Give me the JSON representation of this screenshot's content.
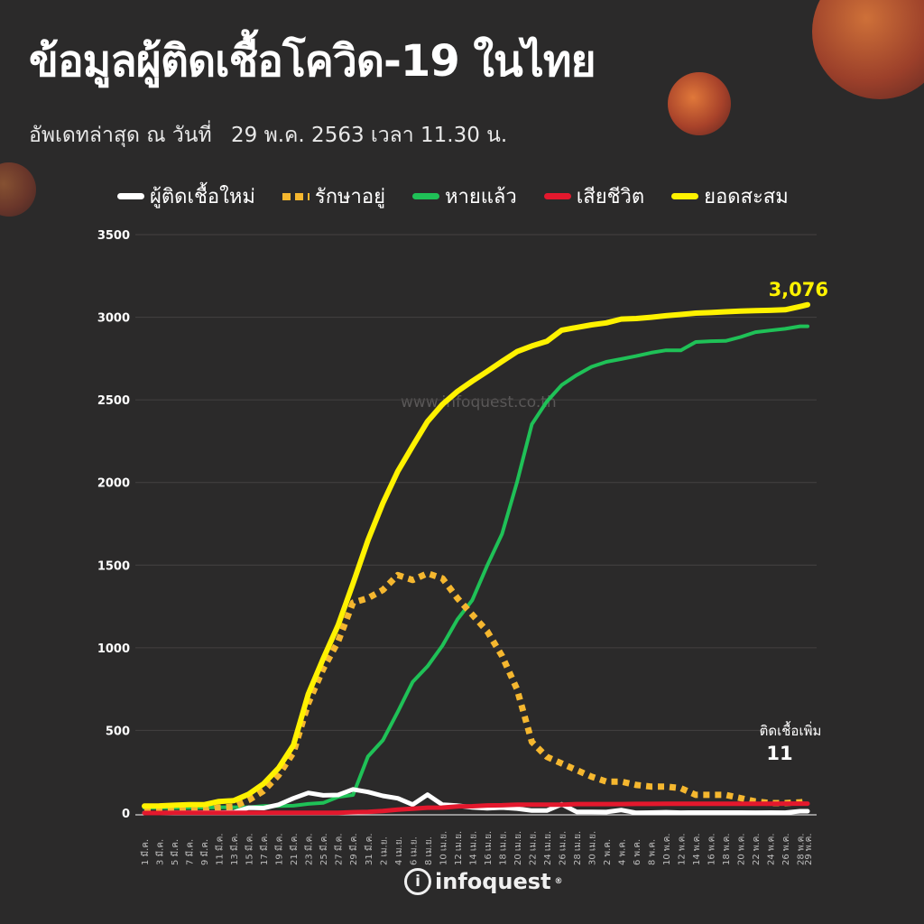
{
  "header": {
    "title": "ข้อมูลผู้ติดเชื้อโควิด-19 ในไทย",
    "updated_label": "อัพเดทล่าสุด ณ วันที่",
    "updated_value": "29 พ.ค. 2563 เวลา 11.30 น."
  },
  "watermark": "www.infoquest.co.th",
  "logo": {
    "text": "infoquest",
    "registered": "®"
  },
  "colors": {
    "background": "#2b2a2a",
    "new": "#ffffff",
    "active": "#f5b72f",
    "recovered": "#1fc157",
    "deaths": "#e3182d",
    "cumulative": "#fff200"
  },
  "chart_data": {
    "type": "line",
    "title": "ข้อมูลผู้ติดเชื้อโควิด-19 ในไทย",
    "xlabel": "",
    "ylabel": "",
    "ylim": [
      0,
      3500
    ],
    "yticks": [
      "0",
      "500",
      "1000",
      "1500",
      "2000",
      "2500",
      "3000",
      "3500"
    ],
    "grid": true,
    "legend_position": "top",
    "x": [
      "1 มี.ค.",
      "3 มี.ค.",
      "5 มี.ค.",
      "7 มี.ค.",
      "9 มี.ค.",
      "11 มี.ค.",
      "13 มี.ค.",
      "15 มี.ค.",
      "17 มี.ค.",
      "19 มี.ค.",
      "21 มี.ค.",
      "23 มี.ค.",
      "25 มี.ค.",
      "27 มี.ค.",
      "29 มี.ค.",
      "31 มี.ค.",
      "2 เม.ย.",
      "4 เม.ย.",
      "6 เม.ย.",
      "8 เม.ย.",
      "10 เม.ย.",
      "12 เม.ย.",
      "14 เม.ย.",
      "16 เม.ย.",
      "18 เม.ย.",
      "20 เม.ย.",
      "22 เม.ย.",
      "24 เม.ย.",
      "26 เม.ย.",
      "28 เม.ย.",
      "30 เม.ย.",
      "2 พ.ค.",
      "4 พ.ค.",
      "6 พ.ค.",
      "8 พ.ค.",
      "10 พ.ค.",
      "12 พ.ค.",
      "14 พ.ค.",
      "16 พ.ค.",
      "18 พ.ค.",
      "20 พ.ค.",
      "22 พ.ค.",
      "24 พ.ค.",
      "26 พ.ค.",
      "28 พ.ค.",
      "29 พ.ค."
    ],
    "x_day": [
      0,
      2,
      4,
      6,
      8,
      10,
      12,
      14,
      16,
      18,
      20,
      22,
      24,
      26,
      28,
      30,
      32,
      34,
      36,
      38,
      40,
      42,
      44,
      46,
      48,
      50,
      52,
      54,
      56,
      58,
      60,
      62,
      64,
      66,
      68,
      70,
      72,
      74,
      76,
      78,
      80,
      82,
      84,
      86,
      88,
      89
    ],
    "series": [
      {
        "key": "new",
        "name": "ผู้ติดเชื้อใหม่",
        "style": "solid",
        "values": [
          0,
          0,
          1,
          1,
          2,
          2,
          5,
          32,
          30,
          50,
          89,
          122,
          107,
          109,
          143,
          127,
          104,
          89,
          51,
          111,
          50,
          45,
          34,
          29,
          33,
          27,
          15,
          15,
          53,
          7,
          7,
          6,
          18,
          1,
          3,
          5,
          2,
          3,
          3,
          3,
          3,
          2,
          3,
          2,
          11,
          11
        ]
      },
      {
        "key": "active",
        "name": "รักษาอยู่",
        "style": "dashed",
        "values": [
          11,
          10,
          13,
          15,
          16,
          33,
          38,
          78,
          134,
          229,
          366,
          665,
          872,
          1038,
          1273,
          1300,
          1350,
          1440,
          1410,
          1450,
          1420,
          1300,
          1200,
          1100,
          950,
          750,
          430,
          340,
          300,
          260,
          220,
          190,
          190,
          170,
          160,
          160,
          150,
          110,
          110,
          110,
          90,
          70,
          60,
          60,
          65,
          70
        ]
      },
      {
        "key": "recovered",
        "name": "หายแล้ว",
        "style": "solid",
        "values": [
          31,
          31,
          31,
          31,
          33,
          35,
          35,
          35,
          42,
          42,
          44,
          55,
          61,
          97,
          109,
          342,
          440,
          612,
          793,
          888,
          1013,
          1171,
          1288,
          1497,
          1689,
          2000,
          2352,
          2490,
          2590,
          2650,
          2700,
          2730,
          2747,
          2765,
          2785,
          2800,
          2800,
          2850,
          2855,
          2857,
          2880,
          2910,
          2920,
          2930,
          2945,
          2945
        ]
      },
      {
        "key": "deaths",
        "name": "เสียชีวิต",
        "style": "solid",
        "values": [
          0,
          0,
          1,
          1,
          1,
          1,
          1,
          1,
          1,
          1,
          1,
          1,
          1,
          1,
          5,
          7,
          12,
          20,
          26,
          32,
          33,
          40,
          41,
          46,
          47,
          50,
          50,
          50,
          51,
          54,
          54,
          54,
          54,
          55,
          55,
          56,
          56,
          56,
          56,
          56,
          56,
          56,
          56,
          57,
          57,
          57
        ]
      },
      {
        "key": "cumulative",
        "name": "ยอดสะสม",
        "style": "solid",
        "values": [
          42,
          43,
          47,
          50,
          50,
          70,
          75,
          114,
          177,
          272,
          411,
          721,
          934,
          1136,
          1388,
          1651,
          1875,
          2067,
          2220,
          2369,
          2473,
          2551,
          2613,
          2672,
          2733,
          2792,
          2826,
          2854,
          2922,
          2938,
          2954,
          2966,
          2989,
          2992,
          3000,
          3009,
          3017,
          3025,
          3028,
          3033,
          3037,
          3040,
          3042,
          3045,
          3065,
          3076
        ]
      }
    ],
    "annotations": {
      "total_label": "3,076",
      "new_label": "ติดเชื้อเพิ่ม",
      "new_value": "11"
    }
  }
}
